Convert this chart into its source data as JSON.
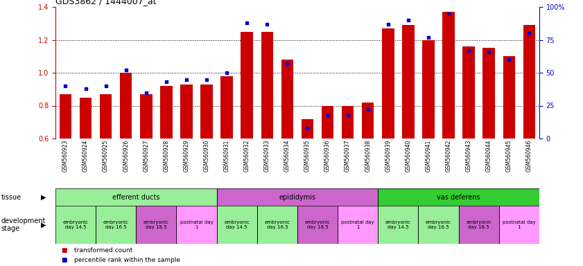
{
  "title": "GDS3862 / 1444007_at",
  "samples": [
    "GSM560923",
    "GSM560924",
    "GSM560925",
    "GSM560926",
    "GSM560927",
    "GSM560928",
    "GSM560929",
    "GSM560930",
    "GSM560931",
    "GSM560932",
    "GSM560933",
    "GSM560934",
    "GSM560935",
    "GSM560936",
    "GSM560937",
    "GSM560938",
    "GSM560939",
    "GSM560940",
    "GSM560941",
    "GSM560942",
    "GSM560943",
    "GSM560944",
    "GSM560945",
    "GSM560946"
  ],
  "transformed_count": [
    0.87,
    0.85,
    0.87,
    1.0,
    0.87,
    0.92,
    0.93,
    0.93,
    0.98,
    1.25,
    1.25,
    1.08,
    0.72,
    0.8,
    0.8,
    0.82,
    1.27,
    1.29,
    1.2,
    1.37,
    1.16,
    1.15,
    1.1,
    1.29
  ],
  "percentile_rank": [
    40,
    38,
    40,
    52,
    35,
    43,
    45,
    45,
    50,
    88,
    87,
    57,
    8,
    18,
    18,
    22,
    87,
    90,
    77,
    95,
    67,
    66,
    60,
    80
  ],
  "ylim_left": [
    0.6,
    1.4
  ],
  "ylim_right": [
    0,
    100
  ],
  "bar_color": "#cc0000",
  "dot_color": "#0000cc",
  "tissue_groups": [
    {
      "label": "efferent ducts",
      "start": 0,
      "end": 8,
      "color": "#99ee99"
    },
    {
      "label": "epididymis",
      "start": 8,
      "end": 16,
      "color": "#cc66cc"
    },
    {
      "label": "vas deferens",
      "start": 16,
      "end": 24,
      "color": "#33cc33"
    }
  ],
  "dev_stage_groups": [
    {
      "label": "embryonic\nday 14.5",
      "start": 0,
      "end": 2,
      "color": "#99ee99"
    },
    {
      "label": "embryonic\nday 16.5",
      "start": 2,
      "end": 4,
      "color": "#99ee99"
    },
    {
      "label": "embryonic\nday 18.5",
      "start": 4,
      "end": 6,
      "color": "#cc66cc"
    },
    {
      "label": "postnatal day\n1",
      "start": 6,
      "end": 8,
      "color": "#ff99ff"
    },
    {
      "label": "embryonic\nday 14.5",
      "start": 8,
      "end": 10,
      "color": "#99ee99"
    },
    {
      "label": "embryonic\nday 16.5",
      "start": 10,
      "end": 12,
      "color": "#99ee99"
    },
    {
      "label": "embryonic\nday 18.5",
      "start": 12,
      "end": 14,
      "color": "#cc66cc"
    },
    {
      "label": "postnatal day\n1",
      "start": 14,
      "end": 16,
      "color": "#ff99ff"
    },
    {
      "label": "embryonic\nday 14.5",
      "start": 16,
      "end": 18,
      "color": "#99ee99"
    },
    {
      "label": "embryonic\nday 16.5",
      "start": 18,
      "end": 20,
      "color": "#99ee99"
    },
    {
      "label": "embryonic\nday 18.5",
      "start": 20,
      "end": 22,
      "color": "#cc66cc"
    },
    {
      "label": "postnatal day\n1",
      "start": 22,
      "end": 24,
      "color": "#ff99ff"
    }
  ],
  "legend_items": [
    {
      "label": "transformed count",
      "color": "#cc0000"
    },
    {
      "label": "percentile rank within the sample",
      "color": "#0000cc"
    }
  ],
  "grid_values": [
    0.8,
    1.0,
    1.2
  ],
  "left_ticks": [
    0.6,
    0.8,
    1.0,
    1.2,
    1.4
  ],
  "right_ticks": [
    0,
    25,
    50,
    75,
    100
  ],
  "right_tick_labels": [
    "0",
    "25",
    "50",
    "75",
    "100%"
  ],
  "bar_width": 0.6,
  "fig_width": 8.41,
  "fig_height": 3.84,
  "dpi": 100
}
